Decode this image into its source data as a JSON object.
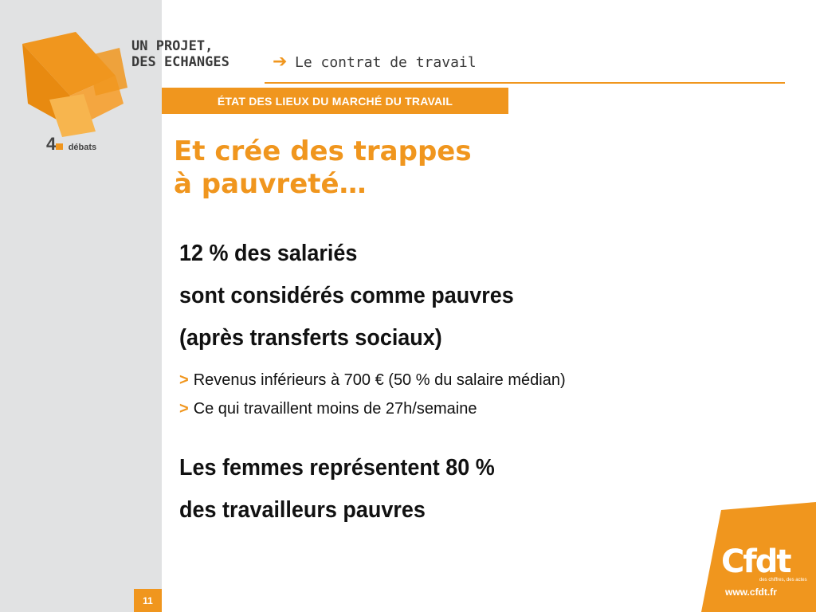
{
  "header": {
    "title_line1": "UN PROJET,",
    "title_line2": "DES ECHANGES",
    "arrow": "➔",
    "subtitle": "Le contrat de travail"
  },
  "logo": {
    "number": "4",
    "word": "débats"
  },
  "section_tag": "ÉTAT DES LIEUX DU MARCHÉ DU TRAVAIL",
  "slide": {
    "title_line1": "Et crée des trappes",
    "title_line2": "à pauvreté…",
    "main_line1": "12 % des salariés",
    "main_line2": "sont considérés comme pauvres",
    "main_line3": "(après transferts sociaux)",
    "bullet_marker": ">",
    "bullets": [
      "Revenus inférieurs à 700 € (50 % du salaire médian)",
      "Ce qui travaillent moins de 27h/semaine"
    ],
    "conclusion_line1": "Les femmes représentent 80 %",
    "conclusion_line2": "des travailleurs pauvres"
  },
  "footer": {
    "page_number": "11",
    "brand": "Cfdt",
    "brand_tagline": "des chiffres, des actes",
    "url": "www.cfdt.fr"
  },
  "colors": {
    "accent": "#f0961e",
    "sidebar": "#e1e2e3",
    "text": "#111111"
  }
}
